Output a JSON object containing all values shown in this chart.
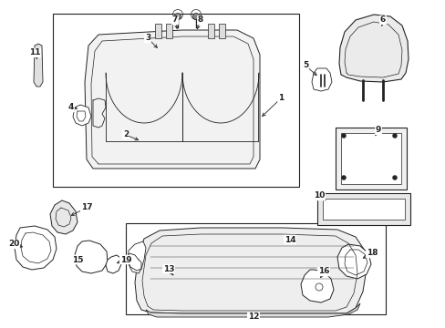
{
  "bg_color": "#ffffff",
  "line_color": "#222222",
  "fig_width": 4.89,
  "fig_height": 3.6,
  "dpi": 100,
  "font_size": 6.5,
  "font_size_sm": 5.5,
  "lw": 0.7
}
